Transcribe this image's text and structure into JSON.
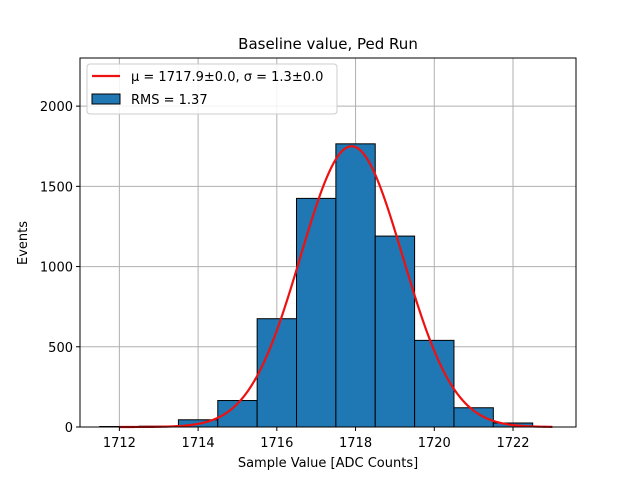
{
  "chart_data": {
    "type": "histogram",
    "title": "Baseline value, Ped Run",
    "xlabel": "Sample Value [ADC Counts]",
    "ylabel": "Events",
    "xlim": [
      1711.0,
      1723.6
    ],
    "ylim": [
      0,
      2300
    ],
    "xticks": [
      1712,
      1714,
      1716,
      1718,
      1720,
      1722
    ],
    "yticks": [
      0,
      500,
      1000,
      1500,
      2000
    ],
    "grid": true,
    "legend_placement": "upper-left",
    "bins": [
      {
        "x0": 1711.5,
        "x1": 1712.5,
        "count": 3
      },
      {
        "x0": 1712.5,
        "x1": 1713.5,
        "count": 5
      },
      {
        "x0": 1713.5,
        "x1": 1714.5,
        "count": 45
      },
      {
        "x0": 1714.5,
        "x1": 1715.5,
        "count": 165
      },
      {
        "x0": 1715.5,
        "x1": 1716.5,
        "count": 675
      },
      {
        "x0": 1716.5,
        "x1": 1717.5,
        "count": 1425
      },
      {
        "x0": 1717.5,
        "x1": 1718.5,
        "count": 1765
      },
      {
        "x0": 1718.5,
        "x1": 1719.5,
        "count": 1190
      },
      {
        "x0": 1719.5,
        "x1": 1720.5,
        "count": 540
      },
      {
        "x0": 1720.5,
        "x1": 1721.5,
        "count": 120
      },
      {
        "x0": 1721.5,
        "x1": 1722.5,
        "count": 25
      }
    ],
    "fit": {
      "type": "gaussian",
      "mu": 1717.9,
      "sigma": 1.3,
      "amplitude": 1750,
      "x_range": [
        1712.0,
        1723.0
      ]
    },
    "series": [
      {
        "name": "μ = 1717.9±0.0, σ = 1.3±0.0",
        "kind": "line",
        "color": "#ff0000"
      },
      {
        "name": "RMS = 1.37",
        "kind": "bar",
        "color": "#1f77b4"
      }
    ]
  },
  "colors": {
    "bar_fill": "#1f77b4",
    "bar_edge": "#000000",
    "fit_line": "#ee1111",
    "grid": "#b0b0b0"
  }
}
